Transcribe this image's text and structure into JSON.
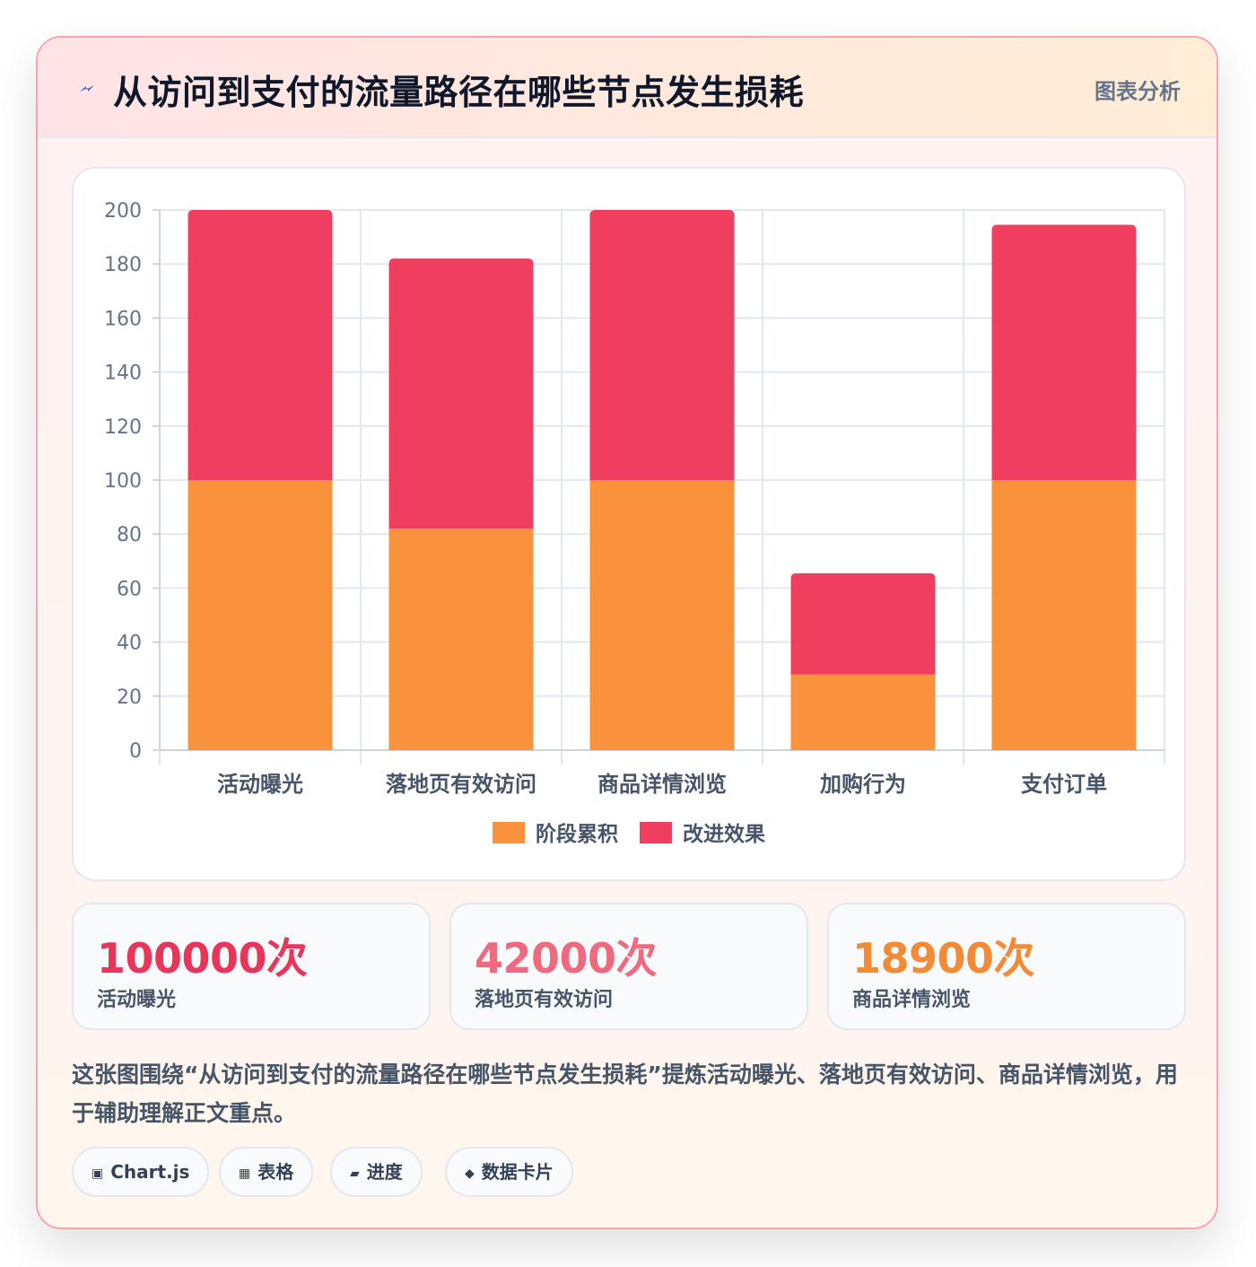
{
  "header": {
    "title": "从访问到支付的流量路径在哪些节点发生损耗",
    "tag": "图表分析",
    "icon": "lightning-icon"
  },
  "chart_data": {
    "type": "bar",
    "stacked": true,
    "categories": [
      "活动曝光",
      "落地页有效访问",
      "商品详情浏览",
      "加购行为",
      "支付订单"
    ],
    "series": [
      {
        "name": "阶段累积",
        "color": "#f9923d",
        "values": [
          100,
          82,
          100,
          28,
          100
        ]
      },
      {
        "name": "改进效果",
        "color": "#f03e5f",
        "values": [
          100,
          100,
          100,
          37.5,
          94.5
        ]
      }
    ],
    "ylim": [
      0,
      200
    ],
    "yticks": [
      0,
      20,
      40,
      60,
      80,
      100,
      120,
      140,
      160,
      180,
      200
    ],
    "grid": true,
    "legend": "bottom"
  },
  "stats": [
    {
      "value": "100000次",
      "label": "活动曝光",
      "color": "#e8365a"
    },
    {
      "value": "42000次",
      "label": "落地页有效访问",
      "color": "#f06a7f"
    },
    {
      "value": "18900次",
      "label": "商品详情浏览",
      "color": "#f28a36"
    }
  ],
  "description": "这张图围绕“从访问到支付的流量路径在哪些节点发生损耗”提炼活动曝光、落地页有效访问、商品详情浏览，用于辅助理解正文重点。",
  "pills": [
    {
      "icon": "▣",
      "label": "Chart.js"
    },
    {
      "icon": "▦",
      "label": "表格"
    },
    {
      "icon": "▰",
      "label": "进度"
    },
    {
      "icon": "◆",
      "label": "数据卡片"
    }
  ]
}
